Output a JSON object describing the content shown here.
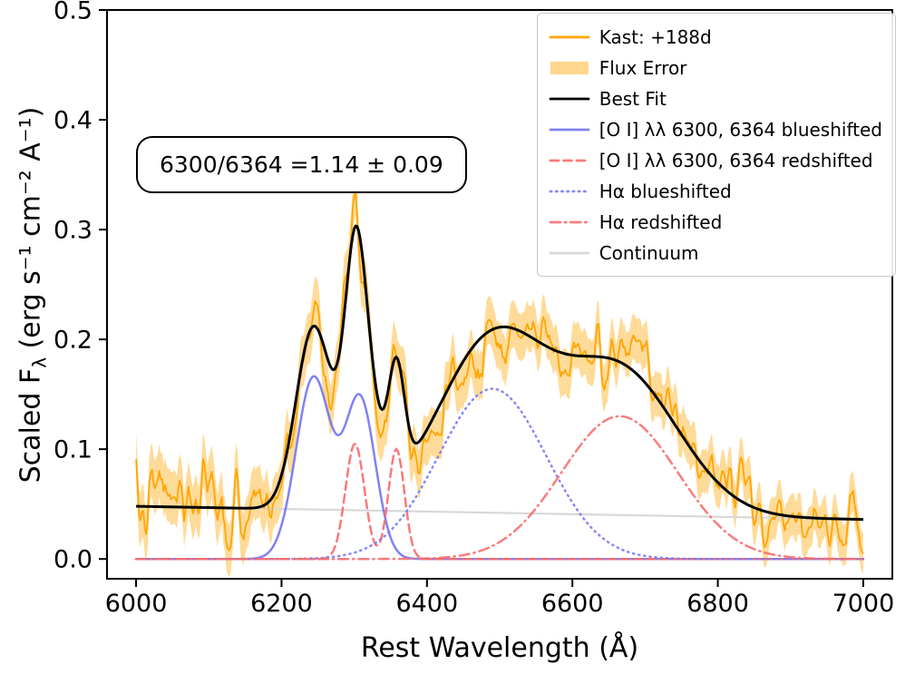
{
  "figure": {
    "xlabel": "Rest Wavelength (Å)",
    "ylabel_prefix": "Scaled F",
    "ylabel_sub": "λ",
    "ylabel_suffix": " (erg s⁻¹ cm⁻² A⁻¹)",
    "annotation": "6300/6364 =1.14 ± 0.09"
  },
  "legend": {
    "items": [
      {
        "label": "Kast: +188d",
        "swatch": "line",
        "color": "#ffa500",
        "opacity": 1
      },
      {
        "label": "Flux Error",
        "swatch": "band",
        "color": "#ffa500",
        "opacity": 0.45
      },
      {
        "label": "Best Fit",
        "swatch": "line",
        "color": "#000000",
        "opacity": 1
      },
      {
        "label": "[O I] λλ 6300, 6364 blueshifted",
        "swatch": "solid",
        "color": "#6a6cf0",
        "opacity": 0.85
      },
      {
        "label": "[O I] λλ 6300, 6364 redshifted",
        "swatch": "dashed",
        "color": "#f86a6a",
        "opacity": 0.9
      },
      {
        "label": "Hα blueshifted",
        "swatch": "dotted",
        "color": "#7a7af5",
        "opacity": 0.9
      },
      {
        "label": "Hα redshifted",
        "swatch": "dashdot",
        "color": "#f76f6f",
        "opacity": 0.9
      },
      {
        "label": "Continuum",
        "swatch": "line",
        "color": "#d8d8d8",
        "opacity": 1
      }
    ]
  },
  "chart_data": {
    "type": "line",
    "title": "",
    "xlabel": "Rest Wavelength (Å)",
    "ylabel": "Scaled Fλ (erg s⁻¹ cm⁻² A⁻¹)",
    "xlim": [
      5960,
      7040
    ],
    "ylim": [
      -0.018,
      0.5
    ],
    "x_ticks": [
      6000,
      6200,
      6400,
      6600,
      6800,
      7000
    ],
    "y_ticks": [
      0.0,
      0.1,
      0.2,
      0.3,
      0.4,
      0.5
    ],
    "x_range": [
      6000,
      7000
    ],
    "sample_step": 2,
    "annotation": "6300/6364 =1.14 ± 0.09",
    "oxygen_line_ratio": {
      "value": 1.14,
      "uncertainty": 0.09
    },
    "epoch": "+188d",
    "instrument": "Kast",
    "continuum": {
      "label": "Continuum",
      "color": "#d8d8d8",
      "y_start": 0.048,
      "y_end": 0.036
    },
    "components": [
      {
        "name": "[O I] λλ 6300, 6364 blueshifted",
        "style": "solid",
        "color": "#6a6cf0",
        "opacity": 0.85,
        "gaussians": [
          {
            "center": 6244,
            "amplitude": 0.165,
            "sigma": 24
          },
          {
            "center": 6308,
            "amplitude": 0.145,
            "sigma": 21
          }
        ]
      },
      {
        "name": "[O I] λλ 6300, 6364 redshifted",
        "style": "dashed",
        "color": "#f86a6a",
        "opacity": 0.9,
        "gaussians": [
          {
            "center": 6301,
            "amplitude": 0.105,
            "sigma": 13
          },
          {
            "center": 6358,
            "amplitude": 0.1,
            "sigma": 11
          }
        ]
      },
      {
        "name": "Hα blueshifted",
        "style": "dotted",
        "color": "#7a7af5",
        "opacity": 0.9,
        "gaussians": [
          {
            "center": 6490,
            "amplitude": 0.155,
            "sigma": 74
          }
        ]
      },
      {
        "name": "Hα redshifted",
        "style": "dashdot",
        "color": "#f76f6f",
        "opacity": 0.9,
        "gaussians": [
          {
            "center": 6665,
            "amplitude": 0.13,
            "sigma": 80
          }
        ]
      }
    ],
    "best_fit": {
      "label": "Best Fit",
      "color": "#000000"
    },
    "spectrum": {
      "label": "Kast: +188d",
      "color": "#ffa500",
      "seed": 7,
      "noise_hf_scale": 0.028,
      "noise_lf_scale": 0.02
    },
    "flux_error": {
      "label": "Flux Error",
      "color": "#ffa500",
      "opacity": 0.4,
      "half_width_start": 0.0245,
      "half_width_end": 0.0185
    }
  }
}
